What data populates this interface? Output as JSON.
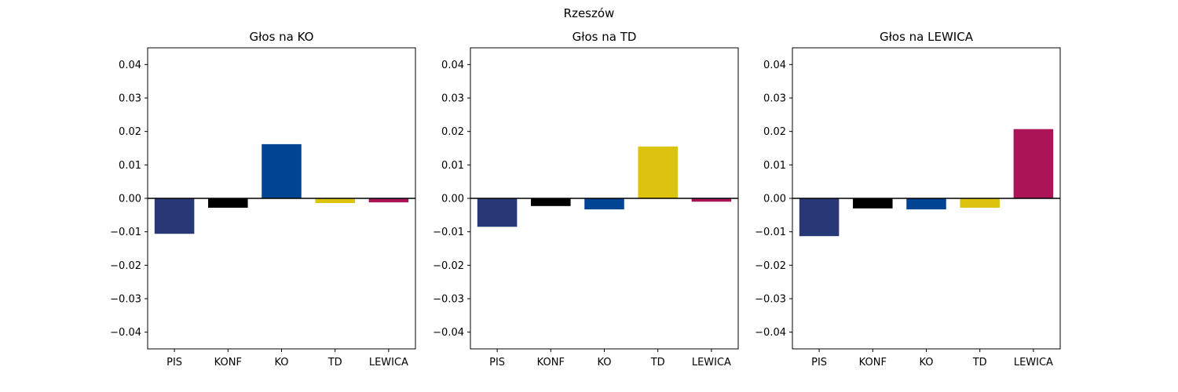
{
  "suptitle": "Rzeszów",
  "chart_data": [
    {
      "type": "bar",
      "title": "Głos na KO",
      "xlabel": "",
      "ylabel": "",
      "categories": [
        "PIS",
        "KONF",
        "KO",
        "TD",
        "LEWICA"
      ],
      "values": [
        -0.0106,
        -0.0028,
        0.0162,
        -0.0014,
        -0.0012
      ],
      "colors": [
        "#283776",
        "#000000",
        "#004494",
        "#dcc30e",
        "#ab1558"
      ],
      "ylim": [
        -0.045,
        0.045
      ],
      "yticks": [
        -0.04,
        -0.03,
        -0.02,
        -0.01,
        0.0,
        0.01,
        0.02,
        0.03,
        0.04
      ],
      "ytick_labels": [
        "−0.04",
        "−0.03",
        "−0.02",
        "−0.01",
        "0.00",
        "0.01",
        "0.02",
        "0.03",
        "0.04"
      ],
      "zero_line": true,
      "grid": false
    },
    {
      "type": "bar",
      "title": "Głos na TD",
      "xlabel": "",
      "ylabel": "",
      "categories": [
        "PIS",
        "KONF",
        "KO",
        "TD",
        "LEWICA"
      ],
      "values": [
        -0.0085,
        -0.0023,
        -0.0033,
        0.0155,
        -0.001
      ],
      "colors": [
        "#283776",
        "#000000",
        "#004494",
        "#dcc30e",
        "#ab1558"
      ],
      "ylim": [
        -0.045,
        0.045
      ],
      "yticks": [
        -0.04,
        -0.03,
        -0.02,
        -0.01,
        0.0,
        0.01,
        0.02,
        0.03,
        0.04
      ],
      "ytick_labels": [
        "−0.04",
        "−0.03",
        "−0.02",
        "−0.01",
        "0.00",
        "0.01",
        "0.02",
        "0.03",
        "0.04"
      ],
      "zero_line": true,
      "grid": false
    },
    {
      "type": "bar",
      "title": "Głos na LEWICA",
      "xlabel": "",
      "ylabel": "",
      "categories": [
        "PIS",
        "KONF",
        "KO",
        "TD",
        "LEWICA"
      ],
      "values": [
        -0.0113,
        -0.003,
        -0.0033,
        -0.0028,
        0.0207
      ],
      "colors": [
        "#283776",
        "#000000",
        "#004494",
        "#dcc30e",
        "#ab1558"
      ],
      "ylim": [
        -0.045,
        0.045
      ],
      "yticks": [
        -0.04,
        -0.03,
        -0.02,
        -0.01,
        0.0,
        0.01,
        0.02,
        0.03,
        0.04
      ],
      "ytick_labels": [
        "−0.04",
        "−0.03",
        "−0.02",
        "−0.01",
        "0.00",
        "0.01",
        "0.02",
        "0.03",
        "0.04"
      ],
      "zero_line": true,
      "grid": false
    }
  ]
}
